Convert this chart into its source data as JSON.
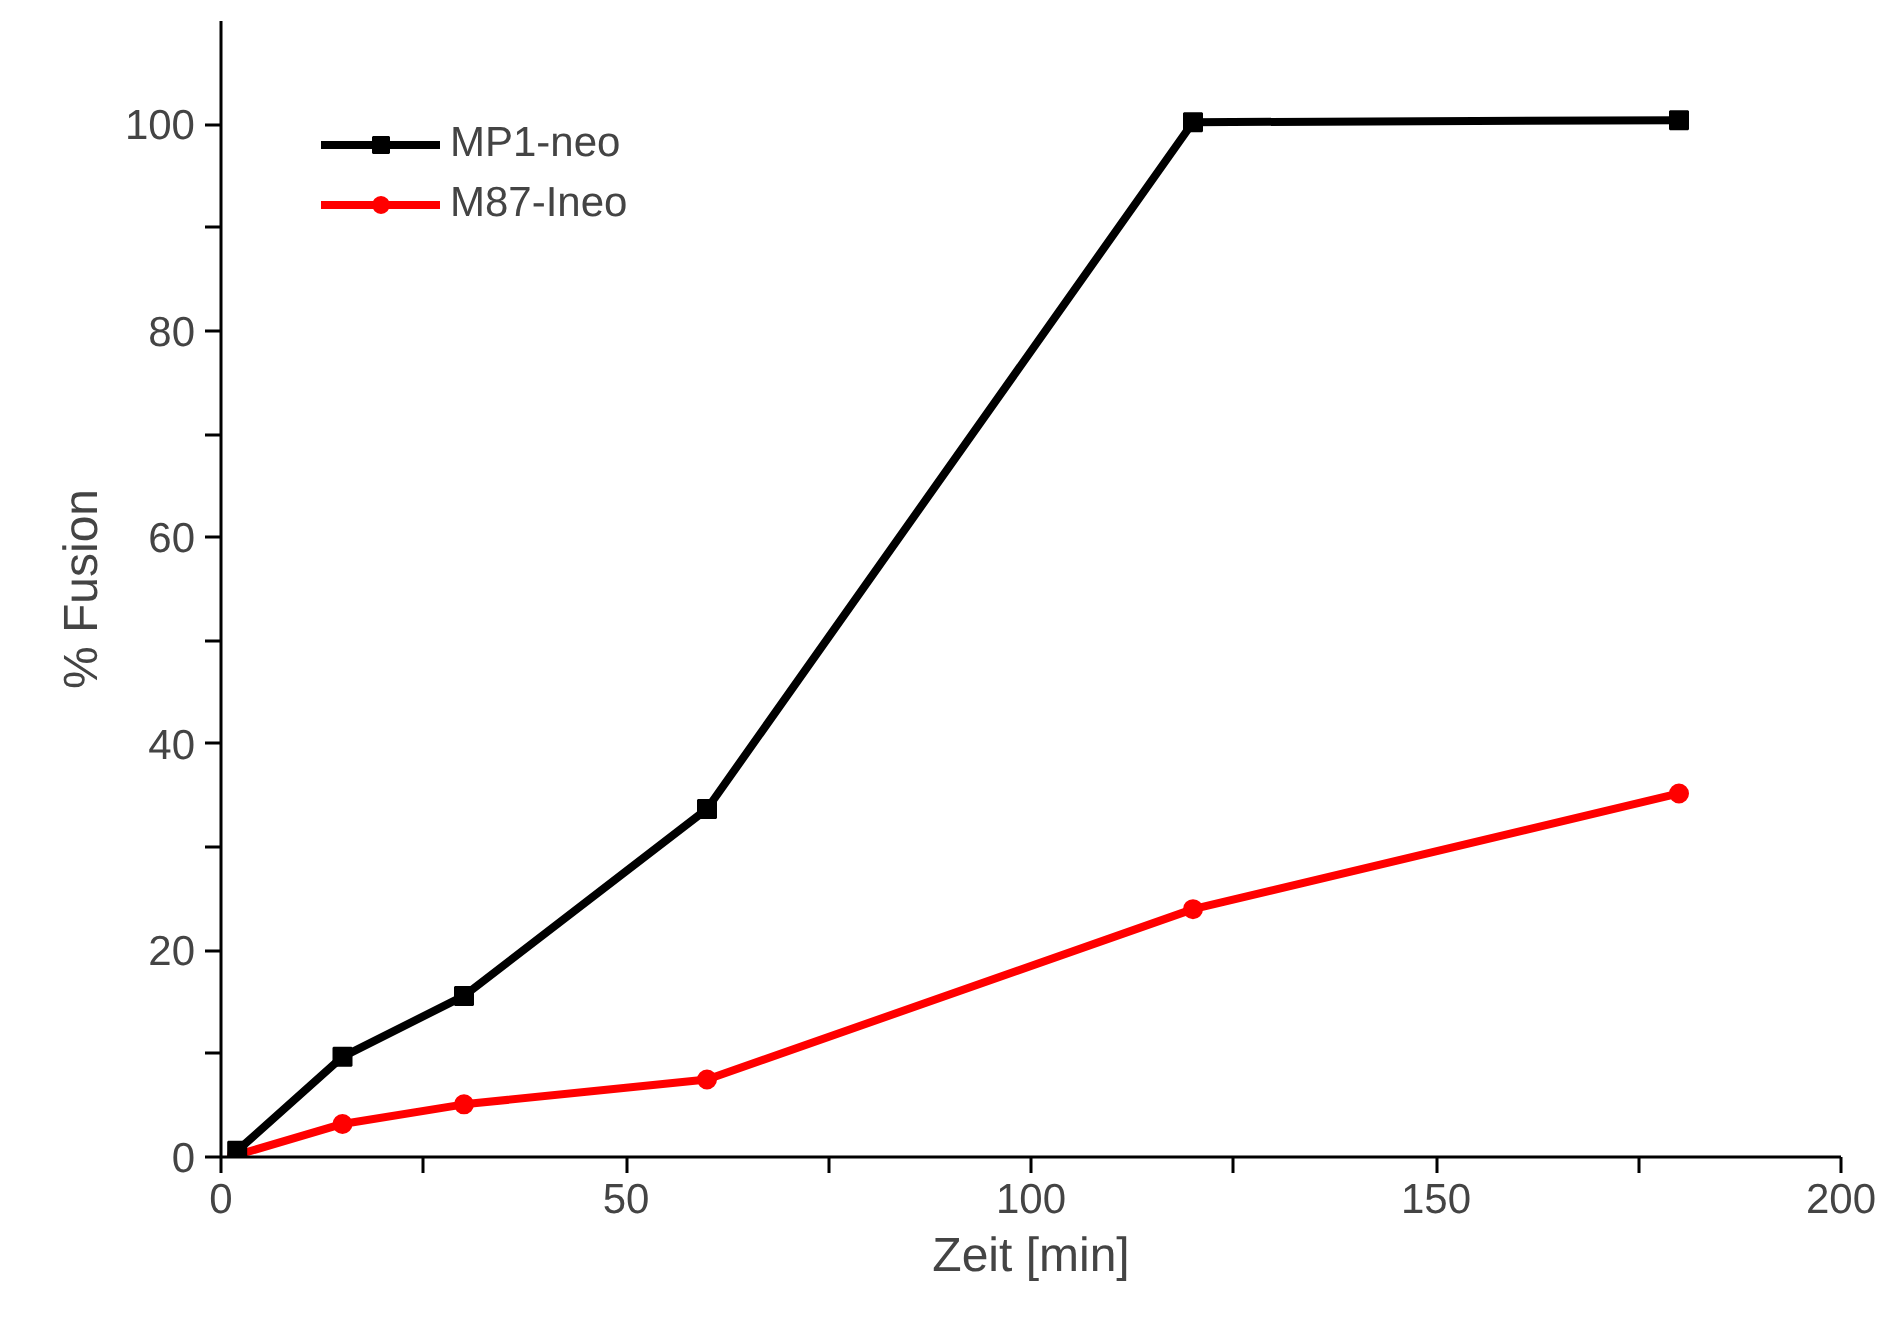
{
  "chart_data": {
    "type": "line",
    "xlabel": "Zeit [min]",
    "ylabel": "% Fusion",
    "xlim": [
      0,
      200
    ],
    "ylim": [
      0,
      110
    ],
    "xticks": [
      0,
      {
        "value": 25,
        "label": null
      },
      50,
      {
        "value": 75,
        "label": null
      },
      100,
      {
        "value": 125,
        "label": null
      },
      150,
      {
        "value": 175,
        "label": null
      },
      200
    ],
    "yticks": [
      0,
      {
        "value": 10,
        "label": null
      },
      20,
      {
        "value": 30,
        "label": null
      },
      40,
      {
        "value": 50,
        "label": null
      },
      60,
      {
        "value": 70,
        "label": null
      },
      80,
      {
        "value": 90,
        "label": null
      },
      100
    ],
    "grid": false,
    "legend": "top left",
    "line_style": "solid",
    "series": [
      {
        "name": "MP1-neo",
        "color": "#000000",
        "marker": "square",
        "x": [
          2,
          15,
          30,
          60,
          120,
          180
        ],
        "values": [
          0.6,
          9.7,
          15.6,
          33.7,
          100.2,
          100.4
        ]
      },
      {
        "name": "M87-Ineo",
        "color": "#ff0000",
        "marker": "circle",
        "x": [
          2,
          15,
          30,
          60,
          120,
          180
        ],
        "values": [
          0.2,
          3.2,
          5.1,
          7.5,
          24,
          35.2
        ]
      }
    ]
  }
}
